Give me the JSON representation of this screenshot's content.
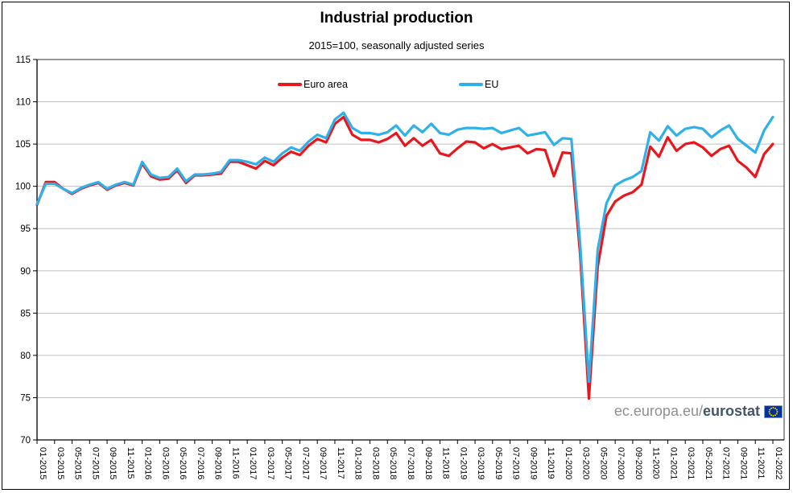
{
  "header": {
    "title": "Industrial production",
    "subtitle": "2015=100, seasonally adjusted series"
  },
  "footer": {
    "link_prefix": "ec.europa.eu/",
    "link_bold": "eurostat"
  },
  "chart_data": {
    "type": "line",
    "title": "Industrial production",
    "subtitle": "2015=100, seasonally adjusted series",
    "x_start": "01-2015",
    "x_end": "01-2022",
    "frequency": "monthly",
    "ylim": [
      70,
      115
    ],
    "y_ticks": [
      70,
      75,
      80,
      85,
      90,
      95,
      100,
      105,
      110,
      115
    ],
    "x_tick_labels": [
      "01-2015",
      "03-2015",
      "05-2015",
      "07-2015",
      "09-2015",
      "11-2015",
      "01-2016",
      "03-2016",
      "05-2016",
      "07-2016",
      "09-2016",
      "11-2016",
      "01-2017",
      "03-2017",
      "05-2017",
      "07-2017",
      "09-2017",
      "11-2017",
      "01-2018",
      "03-2018",
      "05-2018",
      "07-2018",
      "09-2018",
      "11-2018",
      "01-2019",
      "03-2019",
      "05-2019",
      "07-2019",
      "09-2019",
      "11-2019",
      "01-2020",
      "03-2020",
      "05-2020",
      "07-2020",
      "09-2020",
      "11-2020",
      "01-2021",
      "03-2021",
      "05-2021",
      "07-2021",
      "09-2021",
      "11-2021",
      "01-2022"
    ],
    "grid": "horizontal-only",
    "legend_position": "top-inside",
    "series": [
      {
        "name": "Euro area",
        "color": "#e8161d",
        "values": [
          97.8,
          100.5,
          100.5,
          99.7,
          99.1,
          99.7,
          100.1,
          100.4,
          99.6,
          100.1,
          100.4,
          100.1,
          102.7,
          101.2,
          100.8,
          100.9,
          101.9,
          100.4,
          101.3,
          101.3,
          101.4,
          101.5,
          102.9,
          102.9,
          102.5,
          102.1,
          103.0,
          102.5,
          103.4,
          104.1,
          103.7,
          104.8,
          105.6,
          105.2,
          107.4,
          108.2,
          106.1,
          105.5,
          105.5,
          105.2,
          105.6,
          106.3,
          104.8,
          105.7,
          104.8,
          105.5,
          103.9,
          103.6,
          104.5,
          105.3,
          105.2,
          104.5,
          105.0,
          104.4,
          104.6,
          104.8,
          103.9,
          104.4,
          104.3,
          101.2,
          104.0,
          103.9,
          92.0,
          74.9,
          90.5,
          96.5,
          98.2,
          98.9,
          99.3,
          100.2,
          104.7,
          103.5,
          105.8,
          104.2,
          105.0,
          105.2,
          104.6,
          103.6,
          104.4,
          104.8,
          103.0,
          102.2,
          101.1,
          103.8,
          105.0
        ]
      },
      {
        "name": "EU",
        "color": "#2fb0e8",
        "values": [
          97.9,
          100.3,
          100.3,
          99.7,
          99.2,
          99.8,
          100.2,
          100.5,
          99.7,
          100.2,
          100.5,
          100.2,
          102.9,
          101.4,
          101.0,
          101.1,
          102.1,
          100.6,
          101.4,
          101.4,
          101.5,
          101.7,
          103.1,
          103.1,
          102.9,
          102.6,
          103.4,
          102.9,
          103.9,
          104.6,
          104.2,
          105.3,
          106.1,
          105.7,
          107.9,
          108.7,
          106.9,
          106.3,
          106.3,
          106.1,
          106.4,
          107.2,
          106.0,
          107.2,
          106.4,
          107.4,
          106.3,
          106.1,
          106.7,
          106.9,
          106.9,
          106.8,
          106.9,
          106.3,
          106.6,
          106.9,
          106.0,
          106.2,
          106.4,
          104.9,
          105.7,
          105.6,
          93.2,
          76.9,
          92.5,
          98.0,
          100.1,
          100.7,
          101.1,
          101.8,
          106.4,
          105.4,
          107.1,
          106.0,
          106.8,
          107.0,
          106.8,
          105.8,
          106.6,
          107.2,
          105.6,
          104.8,
          104.0,
          106.6,
          108.2
        ]
      }
    ]
  }
}
